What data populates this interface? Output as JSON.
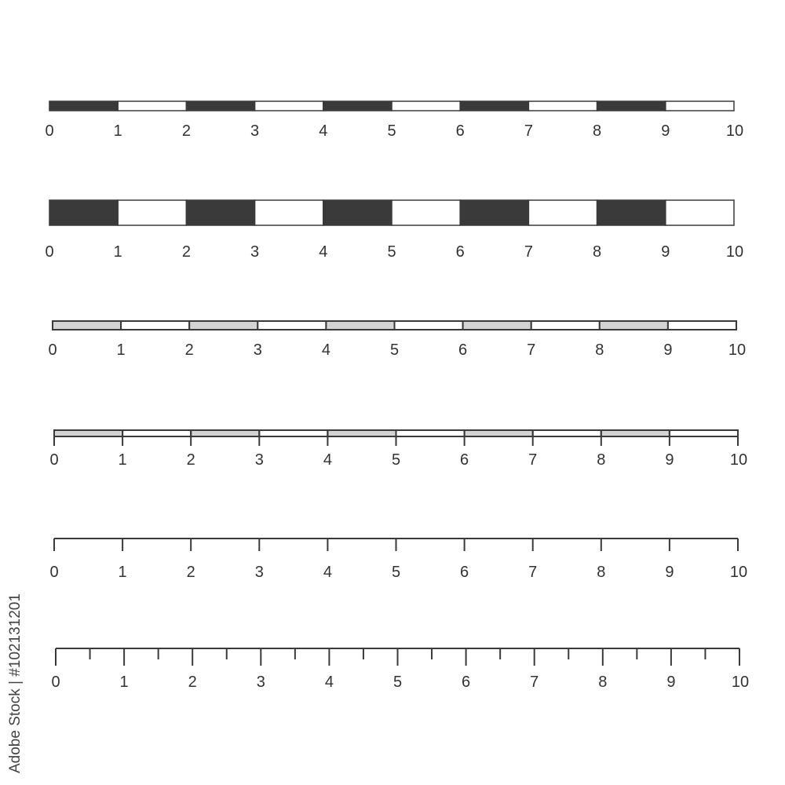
{
  "colors": {
    "dark": "#3a3a3a",
    "light_fill": "#d4d4d4",
    "white": "#ffffff",
    "stroke": "#3a3a3a"
  },
  "scale_bars": [
    {
      "style": "alternating-dark-thin",
      "divisions": 10,
      "labels": [
        "0",
        "1",
        "2",
        "3",
        "4",
        "5",
        "6",
        "7",
        "8",
        "9",
        "10"
      ]
    },
    {
      "style": "alternating-dark-thick",
      "divisions": 10,
      "labels": [
        "0",
        "1",
        "2",
        "3",
        "4",
        "5",
        "6",
        "7",
        "8",
        "9",
        "10"
      ]
    },
    {
      "style": "alternating-gray-outlined",
      "divisions": 10,
      "labels": [
        "0",
        "1",
        "2",
        "3",
        "4",
        "5",
        "6",
        "7",
        "8",
        "9",
        "10"
      ]
    },
    {
      "style": "alternating-gray-with-ticks",
      "divisions": 10,
      "labels": [
        "0",
        "1",
        "2",
        "3",
        "4",
        "5",
        "6",
        "7",
        "8",
        "9",
        "10"
      ]
    },
    {
      "style": "line-with-ticks",
      "divisions": 10,
      "labels": [
        "0",
        "1",
        "2",
        "3",
        "4",
        "5",
        "6",
        "7",
        "8",
        "9",
        "10"
      ]
    },
    {
      "style": "line-with-major-and-minor-ticks",
      "divisions": 10,
      "minor_per_division": 2,
      "labels": [
        "0",
        "1",
        "2",
        "3",
        "4",
        "5",
        "6",
        "7",
        "8",
        "9",
        "10"
      ]
    }
  ],
  "watermark": "Adobe Stock | #102131201"
}
